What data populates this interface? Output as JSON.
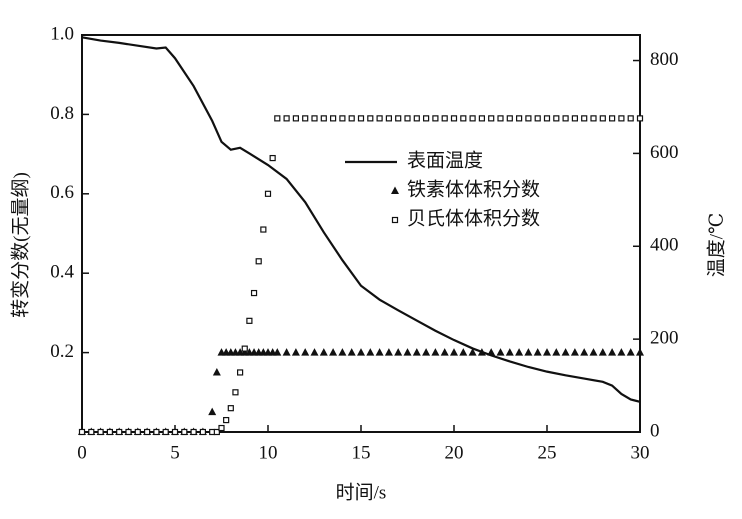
{
  "chart_data": {
    "type": "line",
    "xlabel": "时间/s",
    "ylabel": "转变分数(无量纲)",
    "y2label": "温度/℃",
    "xlim": [
      0,
      30
    ],
    "xticks": [
      0,
      5,
      10,
      15,
      20,
      25,
      30
    ],
    "ylim": [
      0,
      1
    ],
    "yticks": [
      0.2,
      0.4,
      0.6,
      0.8,
      {
        "value": 1,
        "label": "1.0"
      }
    ],
    "y2lim": [
      0,
      855
    ],
    "y2ticks": [
      0,
      200,
      400,
      600,
      800
    ],
    "series": [
      {
        "name": "表面温度",
        "color": "#111111",
        "marker": "line",
        "axis": "y2",
        "x": [
          0,
          1,
          2,
          3,
          4,
          4.5,
          5,
          6,
          7,
          7.5,
          8,
          8.5,
          9,
          10,
          11,
          12,
          13,
          14,
          15,
          16,
          17,
          18,
          19,
          20,
          21,
          22,
          23,
          24,
          25,
          26,
          27,
          28,
          28.5,
          29,
          29.5,
          30
        ],
        "values": [
          850,
          843,
          838,
          832,
          826,
          828,
          805,
          745,
          670,
          625,
          608,
          612,
          600,
          575,
          545,
          495,
          430,
          370,
          315,
          285,
          262,
          240,
          218,
          198,
          180,
          165,
          152,
          140,
          130,
          122,
          115,
          108,
          100,
          82,
          70,
          65
        ]
      },
      {
        "name": "铁素体体积分数",
        "color": "#111111",
        "marker": "triangle",
        "x": [
          0,
          0.5,
          1,
          1.5,
          2,
          2.5,
          3,
          3.5,
          4,
          4.5,
          5,
          5.5,
          6,
          6.5,
          7,
          7.25,
          7.5,
          7.75,
          8,
          8.25,
          8.5,
          8.75,
          9,
          9.25,
          9.5,
          9.75,
          10,
          10.25,
          10.5,
          11,
          11.5,
          12,
          12.5,
          13,
          13.5,
          14,
          14.5,
          15,
          15.5,
          16,
          16.5,
          17,
          17.5,
          18,
          18.5,
          19,
          19.5,
          20,
          20.5,
          21,
          21.5,
          22,
          22.5,
          23,
          23.5,
          24,
          24.5,
          25,
          25.5,
          26,
          26.5,
          27,
          27.5,
          28,
          28.5,
          29,
          29.5,
          30
        ],
        "values": [
          0,
          0,
          0,
          0,
          0,
          0,
          0,
          0,
          0,
          0,
          0,
          0,
          0,
          0,
          0.05,
          0.15,
          0.2,
          0.2,
          0.2,
          0.2,
          0.2,
          0.2,
          0.2,
          0.2,
          0.2,
          0.2,
          0.2,
          0.2,
          0.2,
          0.2,
          0.2,
          0.2,
          0.2,
          0.2,
          0.2,
          0.2,
          0.2,
          0.2,
          0.2,
          0.2,
          0.2,
          0.2,
          0.2,
          0.2,
          0.2,
          0.2,
          0.2,
          0.2,
          0.2,
          0.2,
          0.2,
          0.2,
          0.2,
          0.2,
          0.2,
          0.2,
          0.2,
          0.2,
          0.2,
          0.2,
          0.2,
          0.2,
          0.2,
          0.2,
          0.2,
          0.2,
          0.2,
          0.2
        ]
      },
      {
        "name": "贝氏体体积分数",
        "color": "#111111",
        "marker": "square",
        "x": [
          0,
          0.5,
          1,
          1.5,
          2,
          2.5,
          3,
          3.5,
          4,
          4.5,
          5,
          5.5,
          6,
          6.5,
          7,
          7.25,
          7.5,
          7.75,
          8,
          8.25,
          8.5,
          8.75,
          9,
          9.25,
          9.5,
          9.75,
          10,
          10.25,
          10.5,
          11,
          11.5,
          12,
          12.5,
          13,
          13.5,
          14,
          14.5,
          15,
          15.5,
          16,
          16.5,
          17,
          17.5,
          18,
          18.5,
          19,
          19.5,
          20,
          20.5,
          21,
          21.5,
          22,
          22.5,
          23,
          23.5,
          24,
          24.5,
          25,
          25.5,
          26,
          26.5,
          27,
          27.5,
          28,
          28.5,
          29,
          29.5,
          30
        ],
        "values": [
          0,
          0,
          0,
          0,
          0,
          0,
          0,
          0,
          0,
          0,
          0,
          0,
          0,
          0,
          0,
          0,
          0.01,
          0.03,
          0.06,
          0.1,
          0.15,
          0.21,
          0.28,
          0.35,
          0.43,
          0.51,
          0.6,
          0.69,
          0.79,
          0.79,
          0.79,
          0.79,
          0.79,
          0.79,
          0.79,
          0.79,
          0.79,
          0.79,
          0.79,
          0.79,
          0.79,
          0.79,
          0.79,
          0.79,
          0.79,
          0.79,
          0.79,
          0.79,
          0.79,
          0.79,
          0.79,
          0.79,
          0.79,
          0.79,
          0.79,
          0.79,
          0.79,
          0.79,
          0.79,
          0.79,
          0.79,
          0.79,
          0.79,
          0.79,
          0.79,
          0.79,
          0.79,
          0.79
        ]
      }
    ]
  }
}
